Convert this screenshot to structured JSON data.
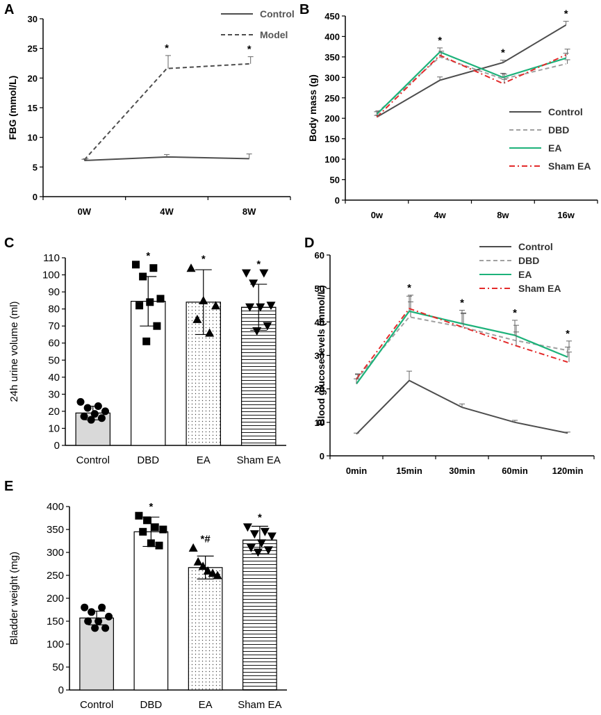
{
  "colors": {
    "control": "#4d4d4d",
    "dbd": "#a0a0a0",
    "ea": "#1db27a",
    "sham": "#e32a2a",
    "bar_control": "#d9d9d9"
  },
  "chart_data": [
    {
      "panel": "A",
      "type": "line",
      "title": "",
      "xlabel": "",
      "ylabel": "FBG (mmol/L)",
      "categories": [
        "0W",
        "4W",
        "8W"
      ],
      "ylim": [
        0,
        30
      ],
      "yticks": [
        0,
        5,
        10,
        15,
        20,
        25,
        30
      ],
      "legend_position": "top-right",
      "series": [
        {
          "name": "Control",
          "values": [
            6.1,
            6.7,
            6.4
          ],
          "err": [
            0.2,
            0.4,
            0.8
          ],
          "color_key": "control",
          "dash": "solid"
        },
        {
          "name": "Model",
          "values": [
            6.2,
            21.6,
            22.4
          ],
          "err": [
            0.2,
            2.2,
            1.2
          ],
          "color_key": "control",
          "dash": "dashed"
        }
      ],
      "stars": [
        {
          "index": 1,
          "text": "*"
        },
        {
          "index": 2,
          "text": "*"
        }
      ]
    },
    {
      "panel": "B",
      "type": "line",
      "title": "",
      "xlabel": "",
      "ylabel": "Body mass (g)",
      "categories": [
        "0w",
        "4w",
        "8w",
        "16w"
      ],
      "ylim": [
        0,
        450
      ],
      "yticks": [
        0,
        50,
        100,
        150,
        200,
        250,
        300,
        350,
        400,
        450
      ],
      "legend_position": "bottom-right",
      "series": [
        {
          "name": "Control",
          "values": [
            203,
            293,
            336,
            428
          ],
          "err": [
            4,
            8,
            6,
            9
          ],
          "color_key": "control",
          "dash": "solid"
        },
        {
          "name": "DBD",
          "values": [
            213,
            350,
            296,
            333
          ],
          "err": [
            5,
            10,
            12,
            10
          ],
          "color_key": "dbd",
          "dash": "dashed"
        },
        {
          "name": "EA",
          "values": [
            210,
            362,
            300,
            347
          ],
          "err": [
            6,
            10,
            10,
            12
          ],
          "color_key": "ea",
          "dash": "solid"
        },
        {
          "name": "Sham EA",
          "values": [
            203,
            354,
            285,
            355
          ],
          "err": [
            5,
            10,
            10,
            14
          ],
          "color_key": "sham",
          "dash": "dashdot"
        }
      ],
      "stars": [
        {
          "index": 1,
          "text": "*"
        },
        {
          "index": 2,
          "text": "*"
        },
        {
          "index": 3,
          "text": "*"
        }
      ]
    },
    {
      "panel": "C",
      "type": "bar",
      "title": "",
      "xlabel": "",
      "ylabel": "24h urine volume (ml)",
      "categories": [
        "Control",
        "DBD",
        "EA",
        "Sham EA"
      ],
      "ylim": [
        0,
        110
      ],
      "yticks": [
        0,
        10,
        20,
        30,
        40,
        50,
        60,
        70,
        80,
        90,
        100,
        110
      ],
      "values": [
        19,
        84.5,
        84,
        81
      ],
      "err": [
        4,
        14.5,
        19,
        13.5
      ],
      "fill": [
        "solid-grey",
        "white",
        "dots",
        "hlines"
      ],
      "markers": [
        "circle",
        "square",
        "triangle-up",
        "triangle-down"
      ],
      "points": [
        [
          25.5,
          23,
          22,
          20,
          18.5,
          17,
          16,
          15
        ],
        [
          106,
          104,
          99,
          86,
          84,
          82,
          70,
          61
        ],
        [
          104,
          85,
          82,
          74,
          66
        ],
        [
          101,
          101,
          95,
          82,
          81,
          81,
          70,
          67
        ]
      ],
      "stars": [
        "",
        "*",
        "*",
        "*"
      ]
    },
    {
      "panel": "D",
      "type": "line",
      "title": "",
      "xlabel": "",
      "ylabel": "Blood glucose levels (mmol/L)",
      "categories": [
        "0min",
        "15min",
        "30min",
        "60min",
        "120min"
      ],
      "ylim": [
        0,
        60
      ],
      "yticks": [
        0,
        10,
        20,
        30,
        40,
        50,
        60
      ],
      "legend_position": "top-right",
      "series": [
        {
          "name": "Control",
          "values": [
            6.5,
            22.5,
            14.5,
            10,
            6.8
          ],
          "err": [
            0.3,
            2.8,
            1.0,
            0.6,
            0.3
          ],
          "color_key": "control",
          "dash": "solid"
        },
        {
          "name": "DBD",
          "values": [
            22.8,
            41.5,
            38.5,
            34.5,
            31.5
          ],
          "err": [
            1.5,
            4.5,
            4.2,
            4.5,
            2.8
          ],
          "color_key": "dbd",
          "dash": "dashed"
        },
        {
          "name": "EA",
          "values": [
            21.5,
            43.2,
            39.5,
            36,
            29.5
          ],
          "err": [
            1.5,
            4.5,
            4.0,
            4.5,
            3.0
          ],
          "color_key": "ea",
          "dash": "solid"
        },
        {
          "name": "Sham EA",
          "values": [
            23,
            44,
            38.5,
            33,
            28
          ],
          "err": [
            1.5,
            4.0,
            4.0,
            4.0,
            3.0
          ],
          "color_key": "sham",
          "dash": "dashdot"
        }
      ],
      "stars": [
        {
          "index": 1,
          "text": "*"
        },
        {
          "index": 2,
          "text": "*"
        },
        {
          "index": 3,
          "text": "*"
        },
        {
          "index": 4,
          "text": "*"
        }
      ]
    },
    {
      "panel": "E",
      "type": "bar",
      "title": "",
      "xlabel": "",
      "ylabel": "Bladder weight (mg)",
      "categories": [
        "Control",
        "DBD",
        "EA",
        "Sham EA"
      ],
      "ylim": [
        0,
        400
      ],
      "yticks": [
        0,
        50,
        100,
        150,
        200,
        250,
        300,
        350,
        400
      ],
      "values": [
        157,
        345,
        267,
        327
      ],
      "err": [
        15,
        32,
        25,
        30
      ],
      "fill": [
        "solid-grey",
        "white",
        "dots",
        "hlines"
      ],
      "markers": [
        "circle",
        "square",
        "triangle-up",
        "triangle-down"
      ],
      "points": [
        [
          180,
          180,
          170,
          160,
          150,
          150,
          135,
          135
        ],
        [
          380,
          370,
          355,
          350,
          345,
          320,
          315
        ],
        [
          310,
          280,
          270,
          260,
          255,
          250
        ],
        [
          355,
          345,
          340,
          335,
          320,
          310,
          305,
          300
        ]
      ],
      "stars": [
        "",
        "*",
        "*#",
        "*"
      ]
    }
  ]
}
